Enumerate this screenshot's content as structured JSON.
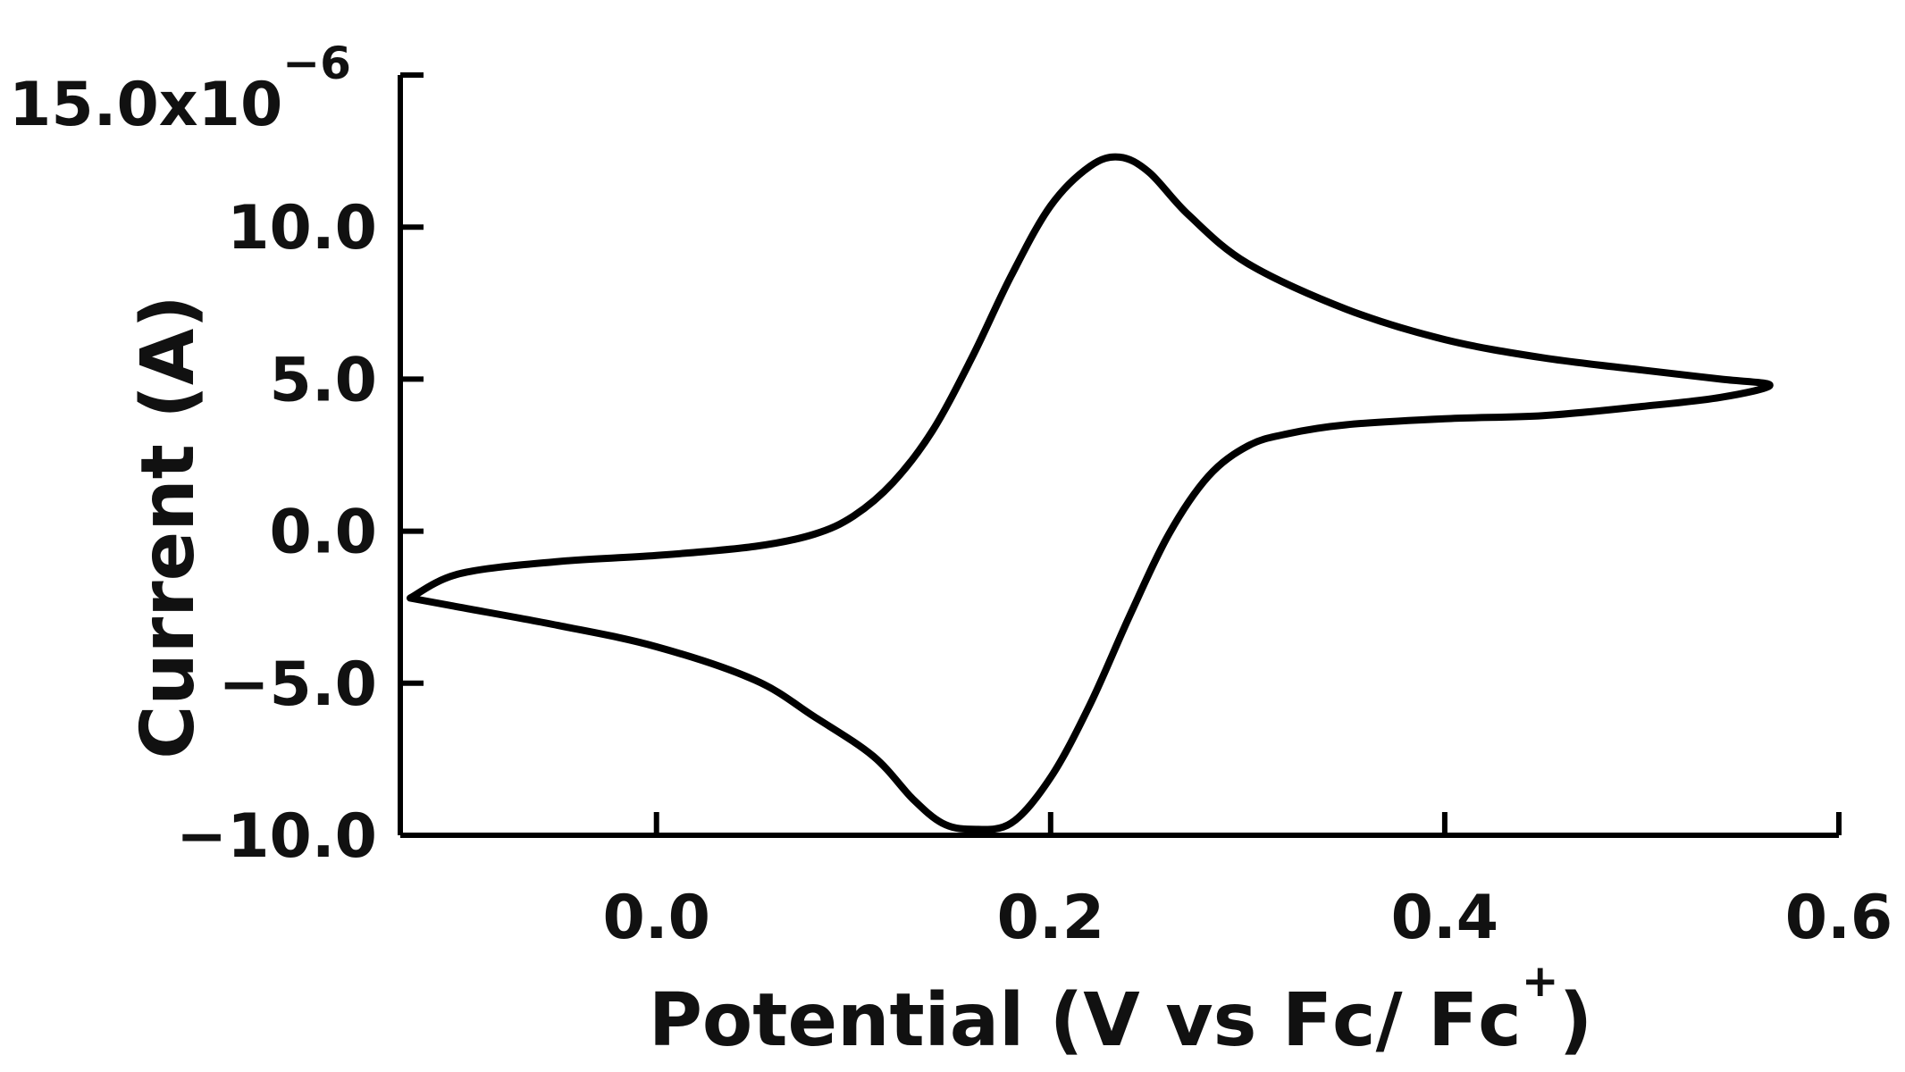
{
  "chart_data": {
    "type": "line",
    "title": "",
    "xlabel": "Potential (V vs Fc/ Fc",
    "xlabel_sup": "+",
    "xlabel_close": ")",
    "ylabel": "Current (A)",
    "y_multiplier": "x10",
    "y_multiplier_exp": "−6",
    "xlim": [
      -0.13,
      0.6
    ],
    "ylim": [
      -10.0,
      15.0
    ],
    "x_ticks": [
      0.0,
      0.2,
      0.4,
      0.6
    ],
    "x_tick_labels": [
      "0.0",
      "0.2",
      "0.4",
      "0.6"
    ],
    "y_ticks": [
      15.0,
      10.0,
      5.0,
      0.0,
      -5.0,
      -10.0
    ],
    "y_tick_labels": [
      "15.0",
      "10.0",
      "5.0",
      "0.0",
      "−5.0",
      "−10.0"
    ],
    "grid": false,
    "legend": "none",
    "line_color": "#000000",
    "series": [
      {
        "x": [
          -0.125,
          -0.1,
          -0.05,
          0.0,
          0.05,
          0.08,
          0.1,
          0.12,
          0.14,
          0.16,
          0.18,
          0.2,
          0.22,
          0.235,
          0.25,
          0.27,
          0.3,
          0.35,
          0.4,
          0.45,
          0.5,
          0.54,
          0.565,
          0.54,
          0.5,
          0.45,
          0.4,
          0.35,
          0.32,
          0.3,
          0.28,
          0.26,
          0.24,
          0.22,
          0.2,
          0.18,
          0.16,
          0.145,
          0.13,
          0.11,
          0.08,
          0.05,
          0.0,
          -0.05,
          -0.1,
          -0.125
        ],
        "y": [
          -2.2,
          -1.4,
          -1.0,
          -0.8,
          -0.5,
          -0.1,
          0.5,
          1.6,
          3.3,
          5.7,
          8.4,
          10.7,
          12.0,
          12.3,
          11.8,
          10.4,
          8.8,
          7.3,
          6.3,
          5.7,
          5.3,
          5.0,
          4.8,
          4.4,
          4.1,
          3.8,
          3.7,
          3.5,
          3.2,
          2.8,
          1.8,
          -0.1,
          -2.8,
          -5.7,
          -8.1,
          -9.6,
          -9.8,
          -9.6,
          -8.8,
          -7.4,
          -6.1,
          -4.9,
          -3.8,
          -3.1,
          -2.5,
          -2.2
        ]
      }
    ]
  }
}
